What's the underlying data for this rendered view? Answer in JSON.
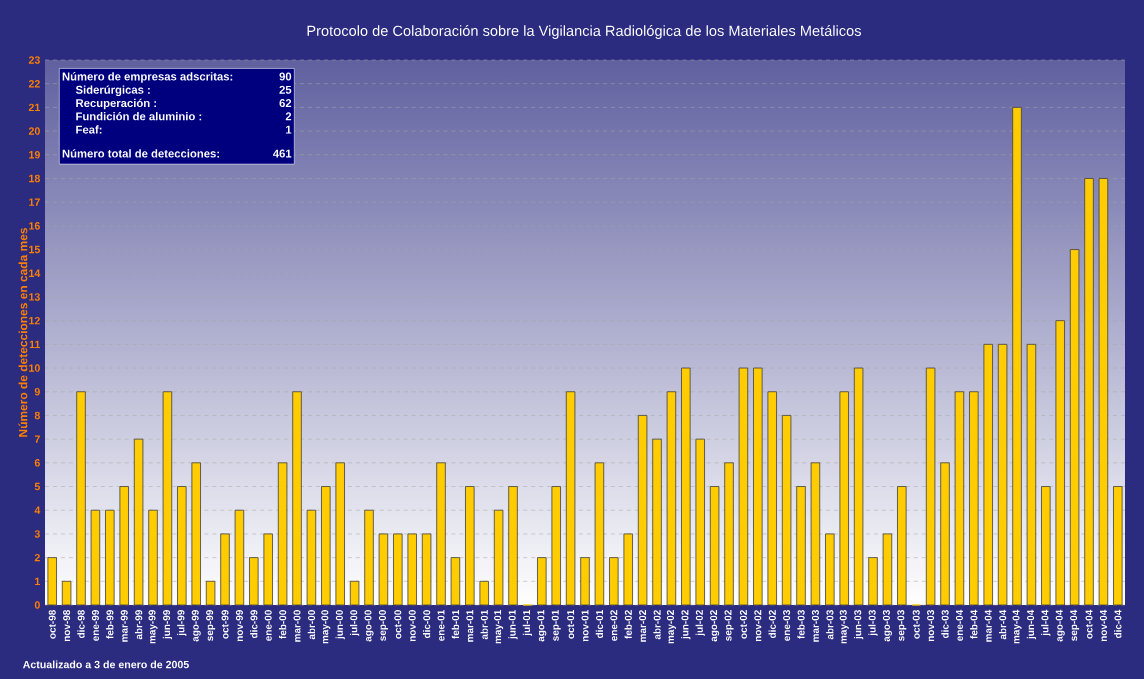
{
  "chart_data": {
    "type": "bar",
    "title": "Protocolo de Colaboración sobre la Vigilancia Radiológica de los Materiales Metálicos",
    "ylabel": "Número de detecciones en cada mes",
    "categories": [
      "oct-98",
      "nov-98",
      "dic-98",
      "ene-99",
      "feb-99",
      "mar-99",
      "abr-99",
      "may-99",
      "jun-99",
      "jul-99",
      "ago-99",
      "sep-99",
      "oct-99",
      "nov-99",
      "dic-99",
      "ene-00",
      "feb-00",
      "mar-00",
      "abr-00",
      "may-00",
      "jun-00",
      "jul-00",
      "ago-00",
      "sep-00",
      "oct-00",
      "nov-00",
      "dic-00",
      "ene-01",
      "feb-01",
      "mar-01",
      "abr-01",
      "may-01",
      "jun-01",
      "jul-01",
      "ago-01",
      "sep-01",
      "oct-01",
      "nov-01",
      "dic-01",
      "ene-02",
      "feb-02",
      "mar-02",
      "abr-02",
      "may-02",
      "jun-02",
      "jul-02",
      "ago-02",
      "sep-02",
      "oct-02",
      "nov-02",
      "dic-02",
      "ene-03",
      "feb-03",
      "mar-03",
      "abr-03",
      "may-03",
      "jun-03",
      "jul-03",
      "ago-03",
      "sep-03",
      "oct-03",
      "nov-03",
      "dic-03",
      "ene-04",
      "feb-04",
      "mar-04",
      "abr-04",
      "may-04",
      "jun-04",
      "jul-04",
      "ago-04",
      "sep-04",
      "oct-04",
      "nov-04",
      "dic-04"
    ],
    "values": [
      2,
      1,
      9,
      4,
      4,
      5,
      7,
      4,
      9,
      5,
      6,
      1,
      3,
      4,
      2,
      3,
      6,
      9,
      4,
      5,
      6,
      1,
      4,
      3,
      3,
      3,
      3,
      6,
      2,
      5,
      1,
      4,
      5,
      0,
      2,
      5,
      9,
      2,
      6,
      2,
      3,
      8,
      7,
      9,
      10,
      7,
      5,
      6,
      10,
      10,
      9,
      8,
      5,
      6,
      3,
      9,
      10,
      2,
      3,
      5,
      0,
      10,
      6,
      9,
      9,
      11,
      11,
      21,
      11,
      5,
      12,
      15,
      18,
      18,
      5
    ],
    "color": "#ffcc00",
    "ylim": [
      0,
      23
    ],
    "yticks": [
      0,
      1,
      2,
      3,
      4,
      5,
      6,
      7,
      8,
      9,
      10,
      11,
      12,
      13,
      14,
      15,
      16,
      17,
      18,
      19,
      20,
      21,
      22,
      23
    ],
    "grid": "y",
    "annotations": [
      "Número de empresas adscritas:",
      "90",
      "Siderúrgicas :",
      "25",
      "Recuperación :",
      "62",
      "Fundición de aluminio :",
      "2",
      "Feaf:",
      "1",
      "Número total de detecciones:",
      "461",
      "Actualizado a 3 de enero de 2005"
    ]
  }
}
